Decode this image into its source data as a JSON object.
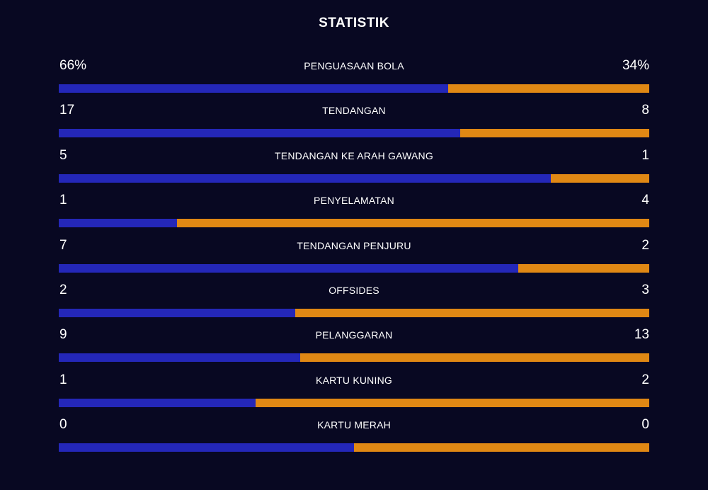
{
  "title": "STATISTIK",
  "colors": {
    "background": "#080822",
    "home": "#2427b8",
    "away": "#e08814"
  },
  "stats": [
    {
      "label": "PENGUASAAN BOLA",
      "home": "66%",
      "away": "34%",
      "home_share": 0.66
    },
    {
      "label": "TENDANGAN",
      "home": "17",
      "away": "8",
      "home_share": 0.68
    },
    {
      "label": "TENDANGAN KE ARAH GAWANG",
      "home": "5",
      "away": "1",
      "home_share": 0.833
    },
    {
      "label": "PENYELAMATAN",
      "home": "1",
      "away": "4",
      "home_share": 0.2
    },
    {
      "label": "TENDANGAN PENJURU",
      "home": "7",
      "away": "2",
      "home_share": 0.778
    },
    {
      "label": "OFFSIDES",
      "home": "2",
      "away": "3",
      "home_share": 0.4
    },
    {
      "label": "PELANGGARAN",
      "home": "9",
      "away": "13",
      "home_share": 0.409
    },
    {
      "label": "KARTU KUNING",
      "home": "1",
      "away": "2",
      "home_share": 0.333
    },
    {
      "label": "KARTU MERAH",
      "home": "0",
      "away": "0",
      "home_share": 0.5
    }
  ]
}
